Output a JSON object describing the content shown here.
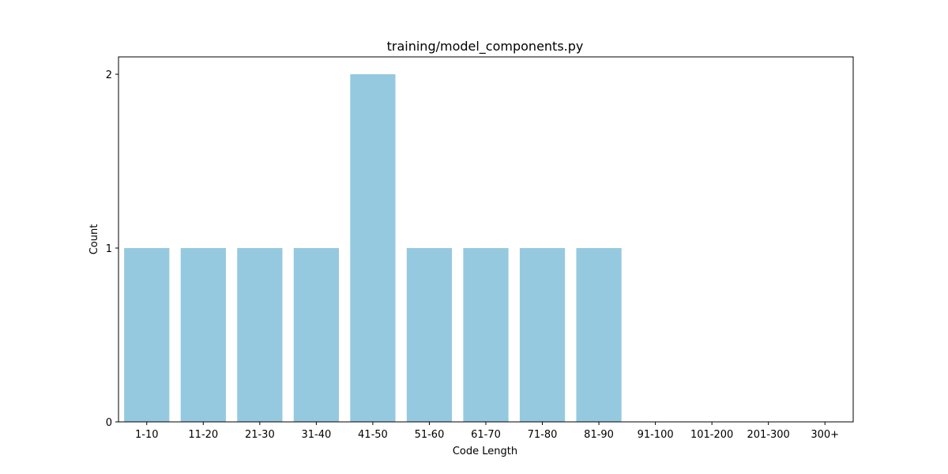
{
  "chart_data": {
    "type": "bar",
    "title": "training/model_components.py",
    "xlabel": "Code Length",
    "ylabel": "Count",
    "categories": [
      "1-10",
      "11-20",
      "21-30",
      "31-40",
      "41-50",
      "51-60",
      "61-70",
      "71-80",
      "81-90",
      "91-100",
      "101-200",
      "201-300",
      "300+"
    ],
    "values": [
      1,
      1,
      1,
      1,
      2,
      1,
      1,
      1,
      1,
      0,
      0,
      0,
      0
    ],
    "ylim": [
      0,
      2.1
    ],
    "yticks": [
      0,
      1,
      2
    ],
    "grid": false,
    "bar_color": "#95c9df"
  }
}
